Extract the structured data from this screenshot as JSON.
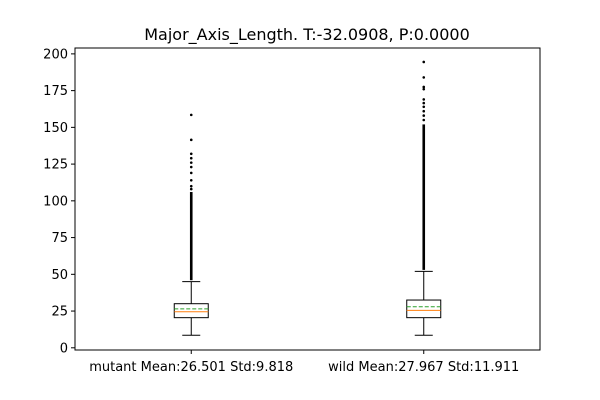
{
  "chart_data": {
    "type": "boxplot",
    "title": "Major_Axis_Length. T:-32.0908, P:0.0000",
    "xlabel": "",
    "ylabel": "",
    "ylim": [
      -1.5,
      204
    ],
    "yticks": [
      0,
      25,
      50,
      75,
      100,
      125,
      150,
      175,
      200
    ],
    "categories": [
      "mutant Mean:26.501 Std:9.818",
      "wild Mean:27.967 Std:11.911"
    ],
    "series": [
      {
        "name": "mutant",
        "whisker_low": 8.5,
        "q1": 20.5,
        "median": 24.5,
        "mean": 26.501,
        "q3": 30.0,
        "whisker_high": 45.0,
        "outlier_dense_range": [
          46,
          106
        ],
        "outliers_sparse": [
          108,
          110,
          114,
          119,
          123,
          126,
          129,
          132,
          141.5,
          158.5
        ]
      },
      {
        "name": "wild",
        "whisker_low": 8.5,
        "q1": 20.5,
        "median": 25.5,
        "mean": 27.967,
        "q3": 32.5,
        "whisker_high": 52.0,
        "outlier_dense_range": [
          53,
          152
        ],
        "outliers_sparse": [
          155,
          158,
          161,
          164,
          166.5,
          169,
          176,
          177.5,
          184,
          194.5
        ]
      }
    ],
    "colors": {
      "median": "#ff7f0e",
      "mean": "#2ca02c",
      "box": "#000000",
      "flier": "#000000"
    }
  }
}
